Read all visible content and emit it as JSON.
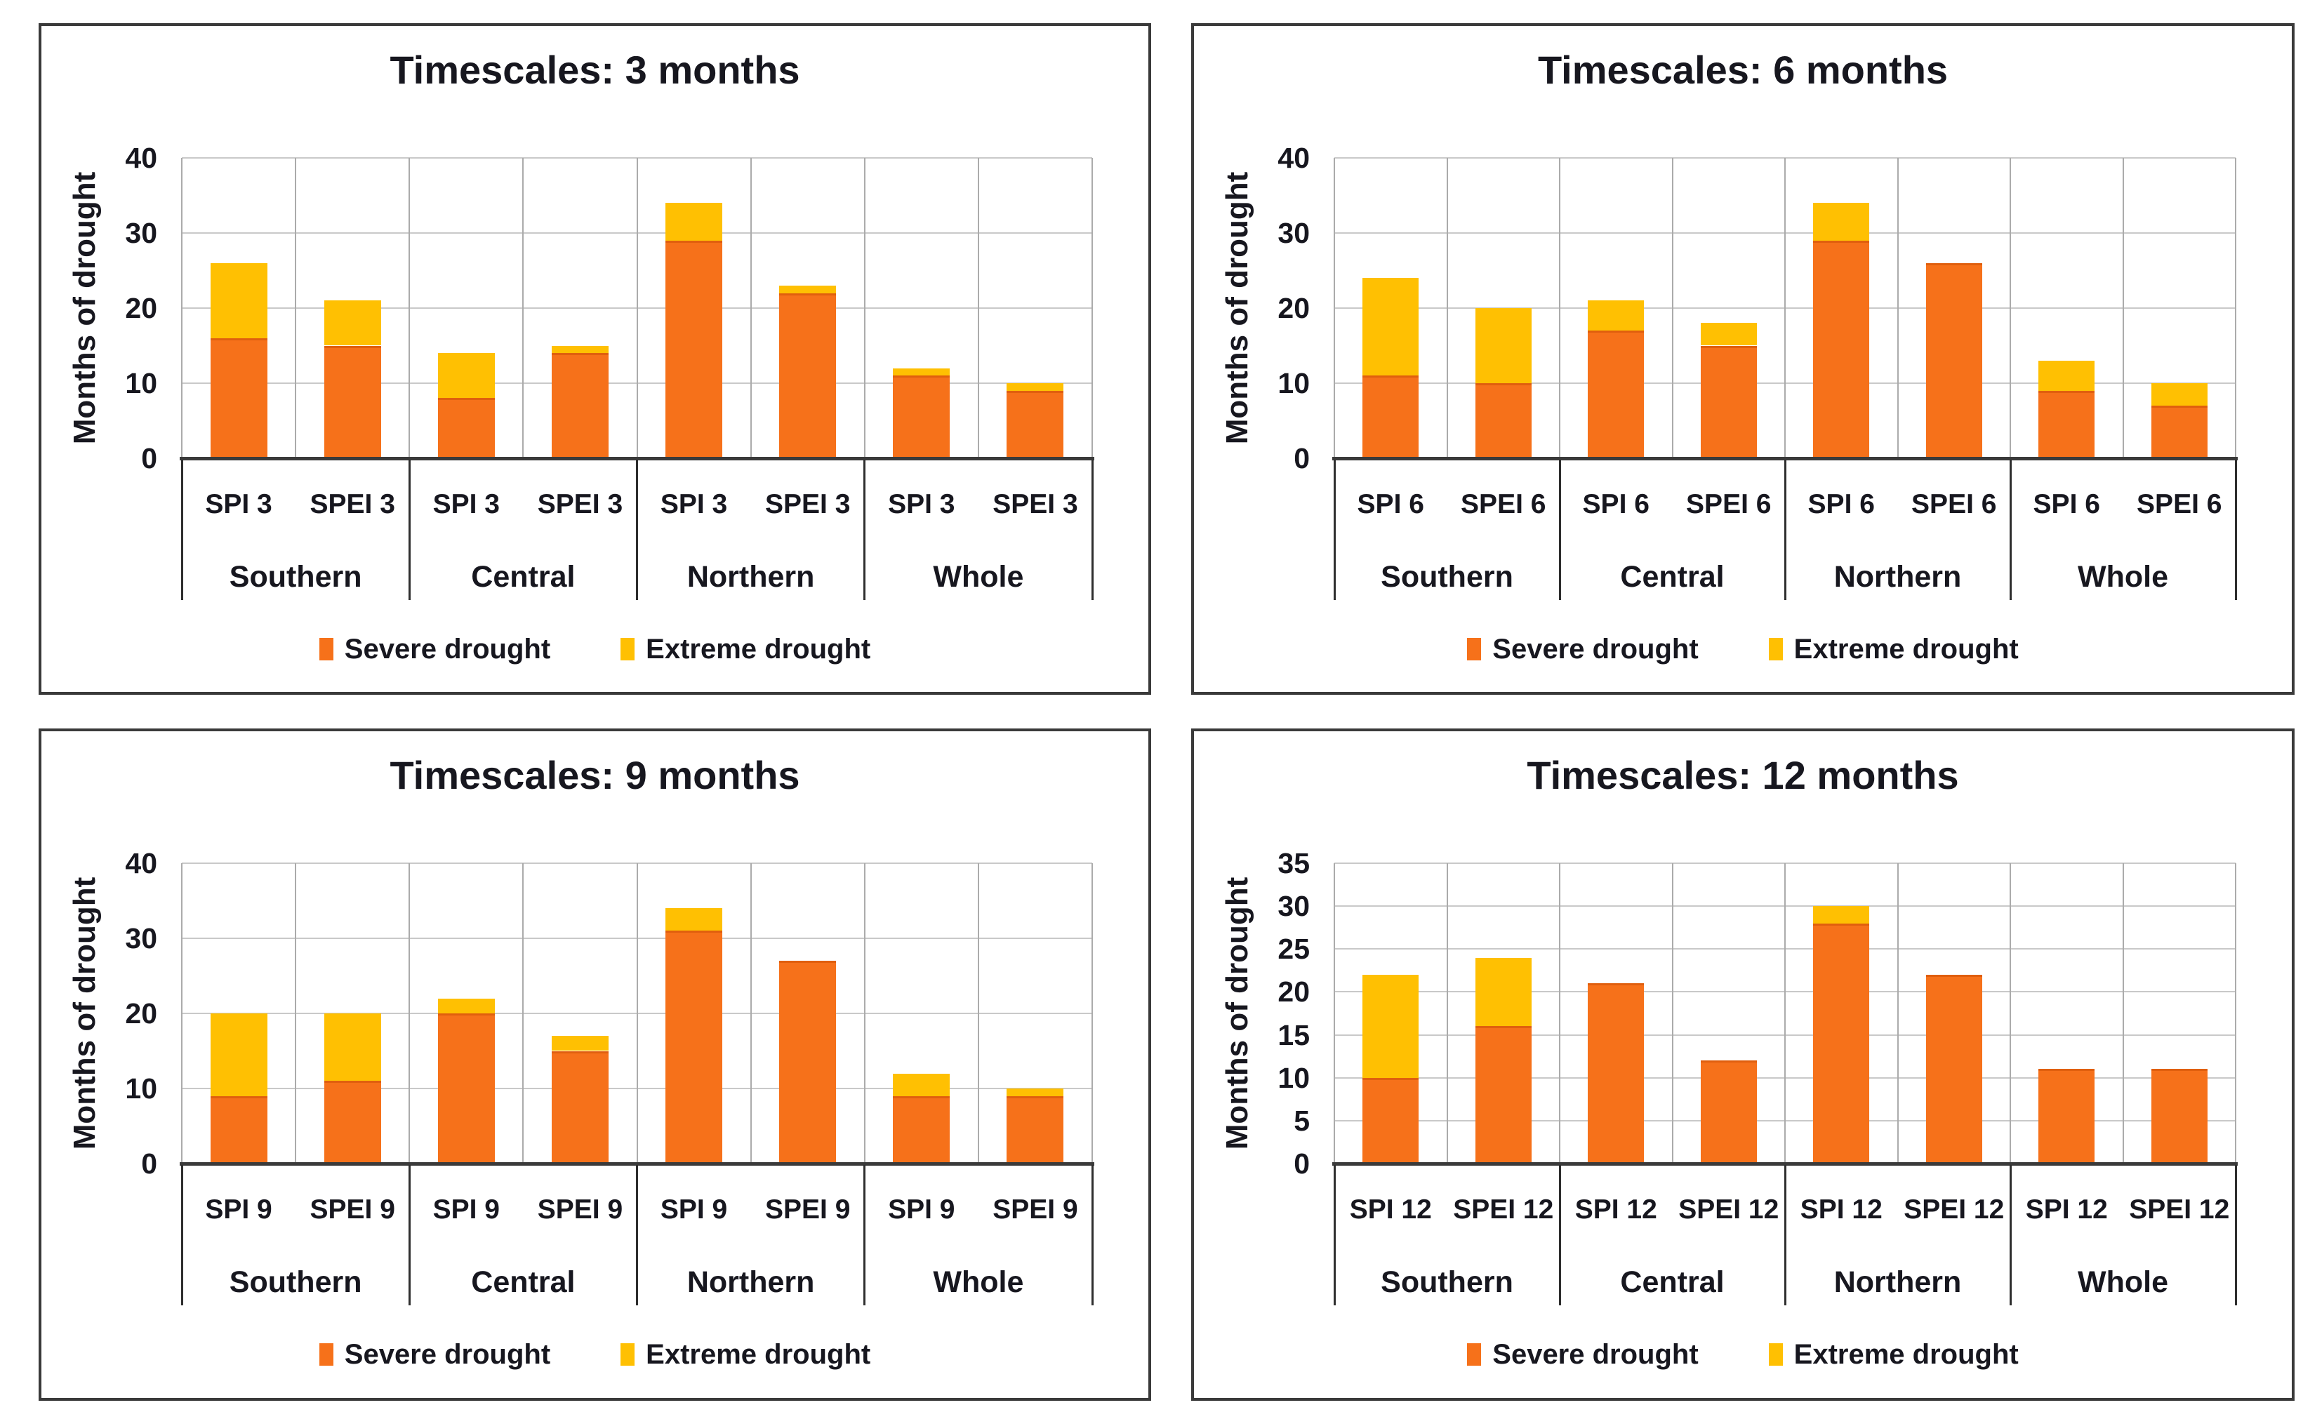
{
  "page": {
    "background": "#ffffff"
  },
  "colors": {
    "severe": "#f6711a",
    "extreme": "#ffc002",
    "severe_top_edge": "#e05f0e",
    "h_gridline": "#c9c9c9",
    "v_gridline": "#ababab",
    "axis": "#3a3a3a",
    "separator": "#2e2e2e",
    "text": "#17171f",
    "panel_border": "#3a3a3a"
  },
  "legend": {
    "severe_label": "Severe drought",
    "extreme_label": "Extreme drought",
    "position": "bottom"
  },
  "regions": [
    "Southern",
    "Central",
    "Northern",
    "Whole"
  ],
  "chart_data": [
    {
      "type": "bar",
      "stacked": true,
      "title": "Timescales: 3 months",
      "ylabel": "Months of drought",
      "ylim": [
        0,
        40
      ],
      "ystep": 10,
      "yticks": [
        0,
        10,
        20,
        30,
        40
      ],
      "grid": true,
      "legend_position": "bottom",
      "categories": [
        "SPI 3",
        "SPEI 3",
        "SPI 3",
        "SPEI 3",
        "SPI 3",
        "SPEI 3",
        "SPI 3",
        "SPEI 3"
      ],
      "group_labels": [
        "Southern",
        "Central",
        "Northern",
        "Whole"
      ],
      "series": [
        {
          "name": "Severe drought",
          "color": "#f6711a",
          "values": [
            16,
            15,
            8,
            14,
            29,
            22,
            11,
            9
          ]
        },
        {
          "name": "Extreme drought",
          "color": "#ffc002",
          "values": [
            10,
            6,
            6,
            1,
            5,
            1,
            1,
            1
          ]
        }
      ],
      "totals": [
        26,
        21,
        14,
        15,
        34,
        23,
        12,
        10
      ]
    },
    {
      "type": "bar",
      "stacked": true,
      "title": "Timescales: 6 months",
      "ylabel": "Months of drought",
      "ylim": [
        0,
        40
      ],
      "ystep": 10,
      "yticks": [
        0,
        10,
        20,
        30,
        40
      ],
      "grid": true,
      "legend_position": "bottom",
      "categories": [
        "SPI 6",
        "SPEI 6",
        "SPI 6",
        "SPEI 6",
        "SPI 6",
        "SPEI 6",
        "SPI 6",
        "SPEI 6"
      ],
      "group_labels": [
        "Southern",
        "Central",
        "Northern",
        "Whole"
      ],
      "series": [
        {
          "name": "Severe drought",
          "color": "#f6711a",
          "values": [
            11,
            10,
            17,
            15,
            29,
            26,
            9,
            7
          ]
        },
        {
          "name": "Extreme drought",
          "color": "#ffc002",
          "values": [
            13,
            10,
            4,
            3,
            5,
            0,
            4,
            3
          ]
        }
      ],
      "totals": [
        24,
        20,
        21,
        18,
        34,
        26,
        13,
        10
      ]
    },
    {
      "type": "bar",
      "stacked": true,
      "title": "Timescales: 9 months",
      "ylabel": "Months of drought",
      "ylim": [
        0,
        40
      ],
      "ystep": 10,
      "yticks": [
        0,
        10,
        20,
        30,
        40
      ],
      "grid": true,
      "legend_position": "bottom",
      "categories": [
        "SPI 9",
        "SPEI 9",
        "SPI 9",
        "SPEI 9",
        "SPI 9",
        "SPEI 9",
        "SPI 9",
        "SPEI 9"
      ],
      "group_labels": [
        "Southern",
        "Central",
        "Northern",
        "Whole"
      ],
      "series": [
        {
          "name": "Severe drought",
          "color": "#f6711a",
          "values": [
            9,
            11,
            20,
            15,
            31,
            27,
            9,
            9
          ]
        },
        {
          "name": "Extreme drought",
          "color": "#ffc002",
          "values": [
            11,
            9,
            2,
            2,
            3,
            0,
            3,
            1
          ]
        }
      ],
      "totals": [
        20,
        20,
        22,
        17,
        34,
        27,
        12,
        10
      ]
    },
    {
      "type": "bar",
      "stacked": true,
      "title": "Timescales: 12 months",
      "ylabel": "Months of drought",
      "ylim": [
        0,
        35
      ],
      "ystep": 5,
      "yticks": [
        0,
        5,
        10,
        15,
        20,
        25,
        30,
        35
      ],
      "grid": true,
      "legend_position": "bottom",
      "categories": [
        "SPI 12",
        "SPEI 12",
        "SPI 12",
        "SPEI 12",
        "SPI 12",
        "SPEI 12",
        "SPI 12",
        "SPEI 12"
      ],
      "group_labels": [
        "Southern",
        "Central",
        "Northern",
        "Whole"
      ],
      "series": [
        {
          "name": "Severe drought",
          "color": "#f6711a",
          "values": [
            10,
            16,
            21,
            12,
            28,
            22,
            11,
            11
          ]
        },
        {
          "name": "Extreme drought",
          "color": "#ffc002",
          "values": [
            12,
            8,
            0,
            0,
            2,
            0,
            0,
            0
          ]
        }
      ],
      "totals": [
        22,
        24,
        21,
        12,
        30,
        22,
        11,
        11
      ]
    }
  ]
}
